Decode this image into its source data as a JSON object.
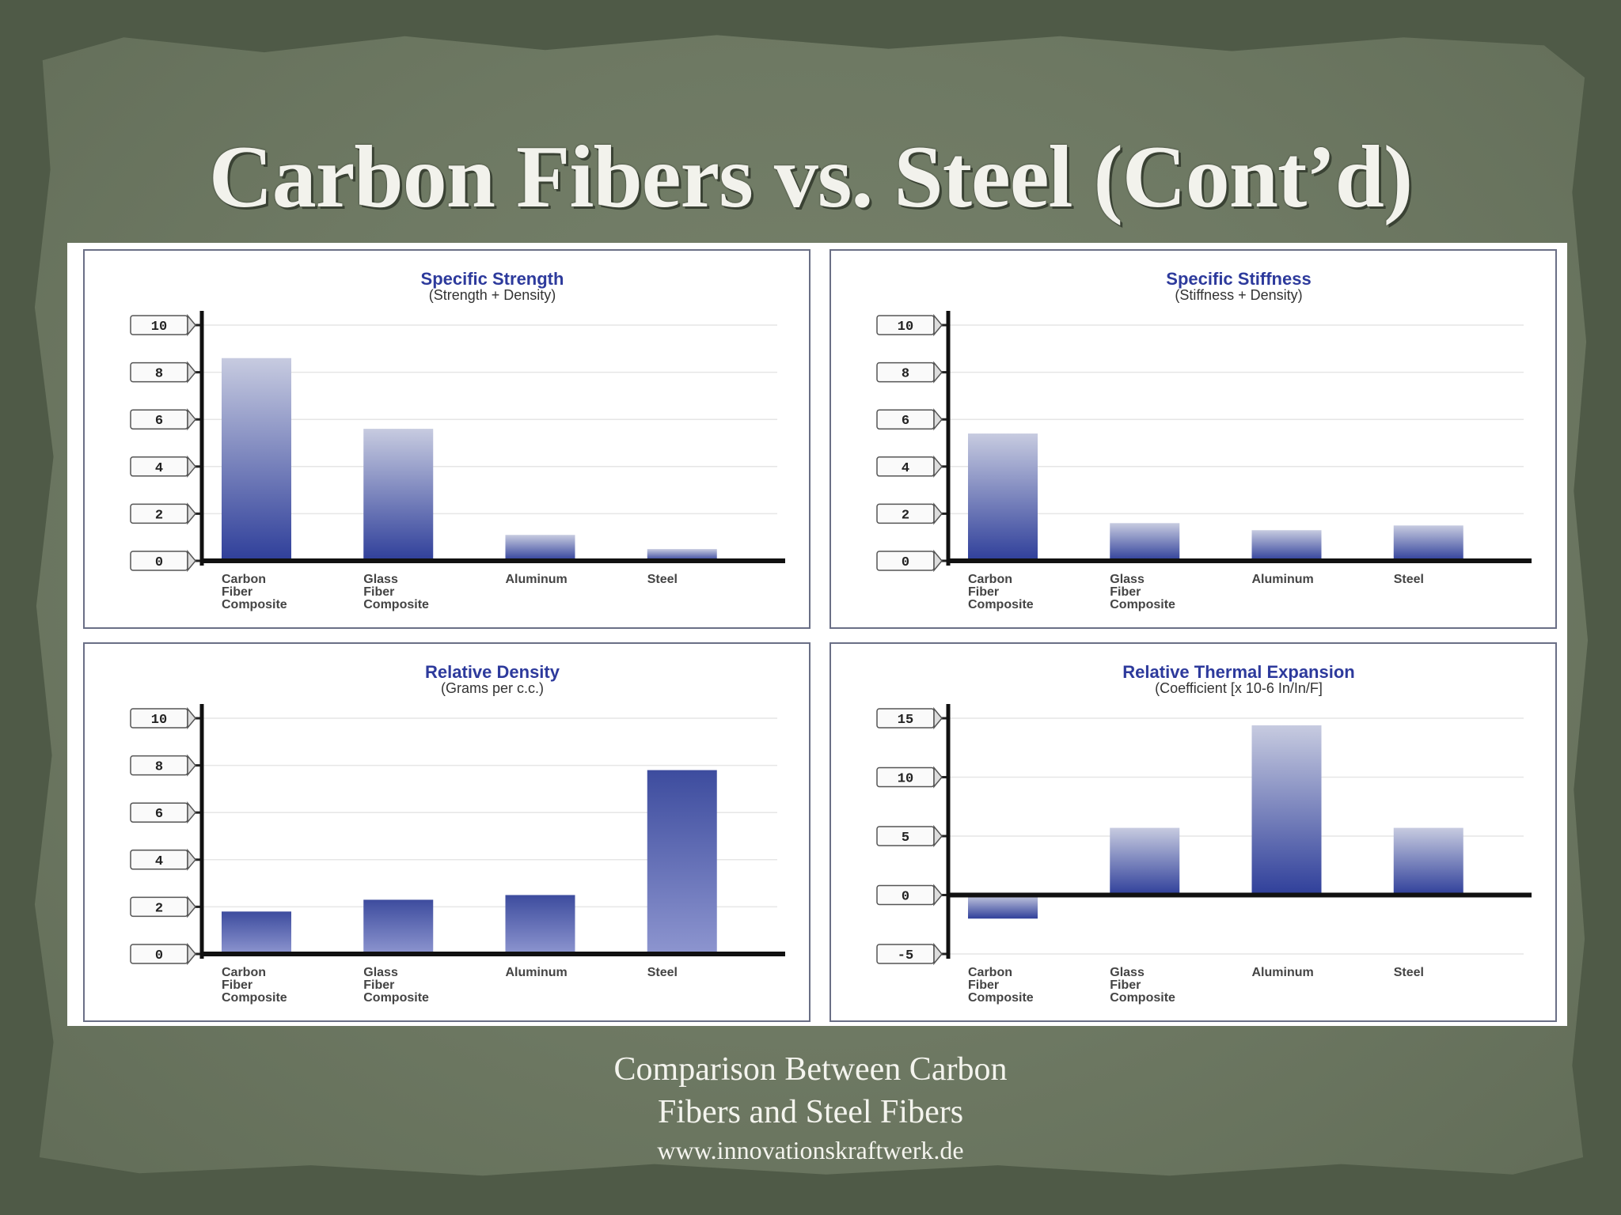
{
  "slide": {
    "title": "Carbon Fibers vs. Steel (Cont’d)",
    "caption_line1": "Comparison Between Carbon",
    "caption_line2": "Fibers and Steel Fibers",
    "caption_url": "www.innovationskraftwerk.de"
  },
  "colors": {
    "bar_dark": "#2f3f9a",
    "bar_light": "#c7cbe0",
    "title_blue": "#2d3a9c"
  },
  "chart_data": [
    {
      "type": "bar",
      "title": "Specific Strength",
      "subtitle": "(Strength + Density)",
      "categories": [
        [
          "Carbon",
          "Fiber",
          "Composite"
        ],
        [
          "Glass",
          "Fiber",
          "Composite"
        ],
        [
          "Aluminum"
        ],
        [
          "Steel"
        ]
      ],
      "values": [
        8.6,
        5.6,
        1.1,
        0.5
      ],
      "yticks": [
        0,
        2,
        4,
        6,
        8,
        10
      ],
      "ylim": [
        0,
        10
      ],
      "grid": true,
      "gradient": [
        "#c7cbe0",
        "#2f3f9a"
      ]
    },
    {
      "type": "bar",
      "title": "Specific Stiffness",
      "subtitle": "(Stiffness + Density)",
      "categories": [
        [
          "Carbon",
          "Fiber",
          "Composite"
        ],
        [
          "Glass",
          "Fiber",
          "Composite"
        ],
        [
          "Aluminum"
        ],
        [
          "Steel"
        ]
      ],
      "values": [
        5.4,
        1.6,
        1.3,
        1.5
      ],
      "yticks": [
        0,
        2,
        4,
        6,
        8,
        10
      ],
      "ylim": [
        0,
        10
      ],
      "grid": true,
      "gradient": [
        "#c7cbe0",
        "#2f3f9a"
      ]
    },
    {
      "type": "bar",
      "title": "Relative Density",
      "subtitle": "(Grams per c.c.)",
      "categories": [
        [
          "Carbon",
          "Fiber",
          "Composite"
        ],
        [
          "Glass",
          "Fiber",
          "Composite"
        ],
        [
          "Aluminum"
        ],
        [
          "Steel"
        ]
      ],
      "values": [
        1.8,
        2.3,
        2.5,
        7.8
      ],
      "yticks": [
        0,
        2,
        4,
        6,
        8,
        10
      ],
      "ylim": [
        0,
        10
      ],
      "grid": true,
      "gradient": [
        "#3d4c9e",
        "#8d95cf"
      ]
    },
    {
      "type": "bar",
      "title": "Relative Thermal Expansion",
      "subtitle": "(Coefficient [x 10-6 In/In/F]",
      "categories": [
        [
          "Carbon",
          "Fiber",
          "Composite"
        ],
        [
          "Glass",
          "Fiber",
          "Composite"
        ],
        [
          "Aluminum"
        ],
        [
          "Steel"
        ]
      ],
      "values": [
        -2,
        5.7,
        14.4,
        5.7
      ],
      "yticks": [
        -5,
        0,
        5,
        10,
        15
      ],
      "ylim": [
        -5,
        15
      ],
      "grid": true,
      "gradient": [
        "#c7cbe0",
        "#2f3f9a"
      ]
    }
  ]
}
